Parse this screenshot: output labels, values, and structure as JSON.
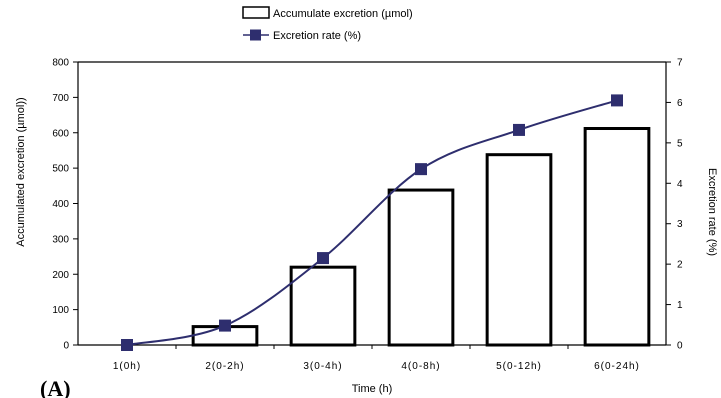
{
  "chart_data": {
    "type": "bar",
    "categories": [
      "1(0h)",
      "2(0-2h)",
      "3(0-4h)",
      "4(0-8h)",
      "5(0-12h)",
      "6(0-24h)"
    ],
    "series": [
      {
        "name": "Accumulate excretion (µmol)",
        "type": "bar",
        "axis": "left",
        "values": [
          0,
          52,
          220,
          438,
          538,
          612
        ]
      },
      {
        "name": "Excretion rate (%)",
        "type": "line",
        "axis": "right",
        "values": [
          0,
          0.48,
          2.15,
          4.35,
          5.32,
          6.05
        ]
      }
    ],
    "xlabel": "Time (h)",
    "ylabel": "Accumulated excretion (µmol))",
    "y2label": "Excretion rate (%)",
    "ylim": [
      0,
      800
    ],
    "yticks": [
      0,
      100,
      200,
      300,
      400,
      500,
      600,
      700,
      800
    ],
    "y2lim": [
      0,
      7
    ],
    "y2ticks": [
      0,
      1,
      2,
      3,
      4,
      5,
      6,
      7
    ],
    "grid": false,
    "legend_position": "top-center",
    "panel_label": "(A)",
    "colors": {
      "bar_fill": "#ffffff",
      "bar_edge": "#000000",
      "line": "#2e2e6e",
      "marker": "#2e2e6e"
    }
  }
}
